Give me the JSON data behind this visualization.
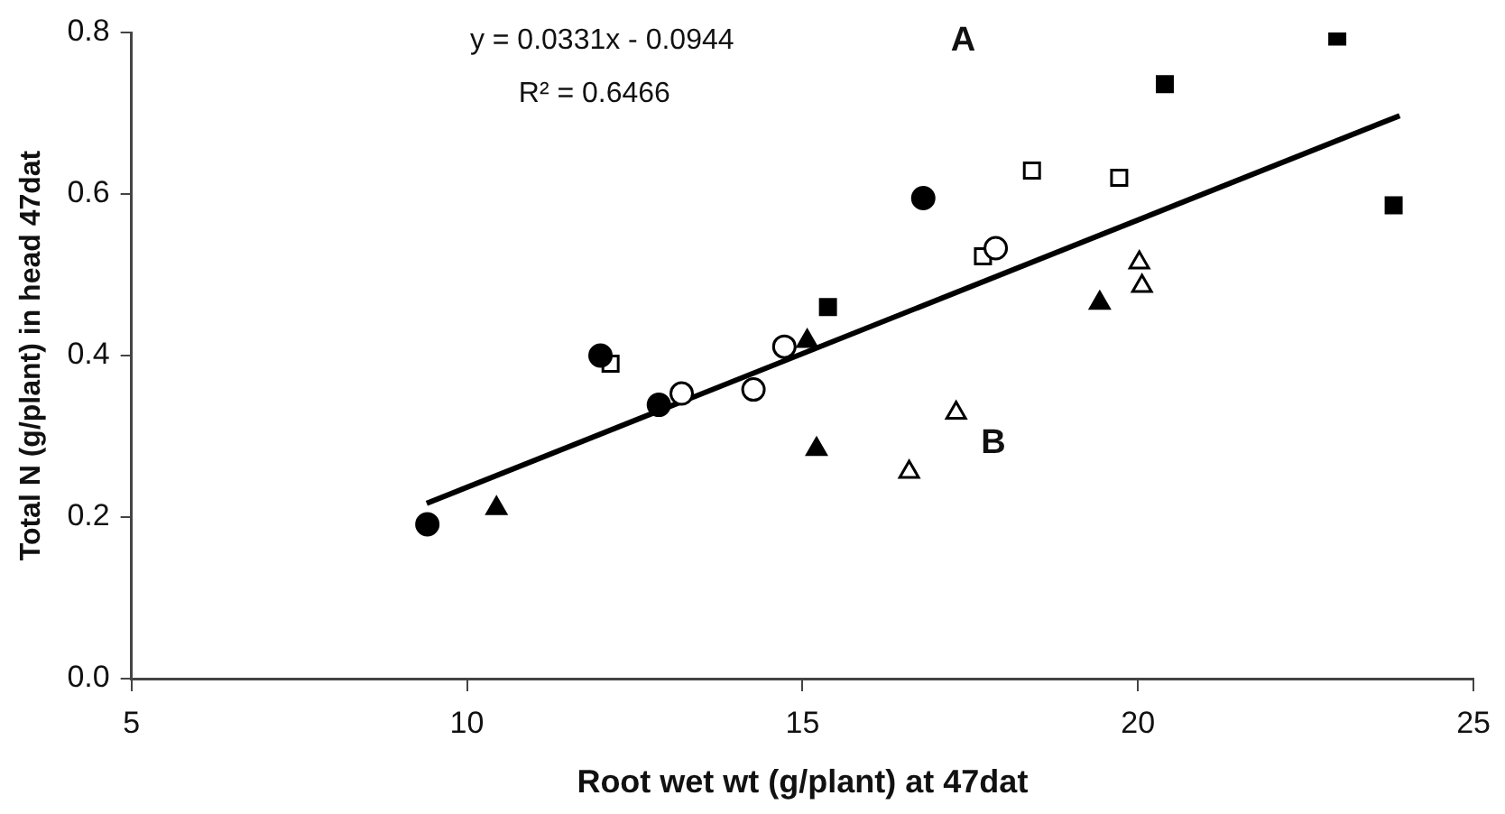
{
  "chart_data": {
    "type": "scatter",
    "xlabel": "Root wet wt (g/plant) at 47dat",
    "ylabel": "Total N (g/plant) in head 47dat",
    "xlim": [
      5,
      25
    ],
    "xticks": [
      5,
      10,
      15,
      20,
      25
    ],
    "ylim": [
      0,
      0.8
    ],
    "yticks": [
      {
        "value": 0,
        "label": "0.0"
      },
      0.2,
      0.4,
      0.6,
      0.8
    ],
    "grid": false,
    "legend": false,
    "annotations": [
      "y = 0.0331x - 0.0944",
      "R² = 0.6466",
      "A",
      "B"
    ],
    "series": [
      {
        "marker": "circle",
        "color": "#000000",
        "x": [
          9.41,
          11.99,
          12.86,
          16.8
        ],
        "values": [
          0.191,
          0.4,
          0.339,
          0.595
        ]
      },
      {
        "marker": "circle",
        "color": "#ffffff",
        "x": [
          13.2,
          14.27,
          14.73,
          17.88
        ],
        "values": [
          0.353,
          0.358,
          0.411,
          0.533
        ]
      },
      {
        "marker": "square",
        "color": "#000000",
        "x": [
          15.38,
          20.4,
          22.97,
          23.81
        ],
        "values": [
          0.46,
          0.736,
          0.795,
          0.586
        ]
      },
      {
        "marker": "square",
        "color": "#ffffff",
        "x": [
          12.14,
          17.69,
          18.42,
          19.72
        ],
        "values": [
          0.39,
          0.523,
          0.629,
          0.62
        ]
      },
      {
        "marker": "triangle",
        "color": "#000000",
        "x": [
          10.44,
          15.07,
          15.21,
          19.43
        ],
        "values": [
          0.211,
          0.418,
          0.284,
          0.465
        ]
      },
      {
        "marker": "triangle",
        "color": "#ffffff",
        "x": [
          16.59,
          17.29,
          20.02,
          20.06
        ],
        "values": [
          0.256,
          0.329,
          0.515,
          0.486
        ]
      },
      {
        "type": "line",
        "marker": "none",
        "line_style": "solid",
        "color": "#000000",
        "x": [
          9.4,
          23.9
        ],
        "values": [
          0.217,
          0.697
        ]
      }
    ]
  }
}
